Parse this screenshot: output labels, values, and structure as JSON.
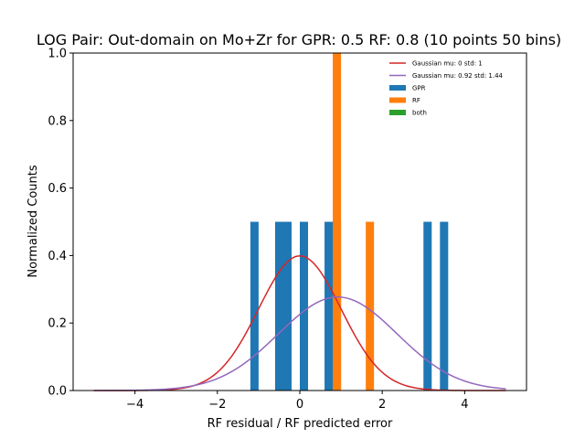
{
  "chart_data": {
    "type": "bar",
    "title": "LOG Pair: Out-domain on Mo+Zr for GPR: 0.5 RF: 0.8 (10 points 50 bins)",
    "xlabel": "RF residual / RF predicted error",
    "ylabel": "Normalized Counts",
    "xlim": [
      -5.5,
      5.5
    ],
    "ylim": [
      0,
      1.0
    ],
    "xticks": [
      -4,
      -2,
      0,
      2,
      4
    ],
    "xtick_labels": [
      "−4",
      "−2",
      "0",
      "2",
      "4"
    ],
    "yticks": [
      0.0,
      0.2,
      0.4,
      0.6,
      0.8,
      1.0
    ],
    "ytick_labels": [
      "0.0",
      "0.2",
      "0.4",
      "0.6",
      "0.8",
      "1.0"
    ],
    "grid": false,
    "legend_position": "top-right",
    "histograms": [
      {
        "name": "GPR",
        "color": "#1f77b4",
        "bins": [
          {
            "x0": -1.2,
            "x1": -1.0,
            "height": 0.5
          },
          {
            "x0": -0.6,
            "x1": -0.2,
            "height": 0.5
          },
          {
            "x0": 0.0,
            "x1": 0.2,
            "height": 0.5
          },
          {
            "x0": 0.6,
            "x1": 1.0,
            "height": 0.5
          },
          {
            "x0": 3.0,
            "x1": 3.2,
            "height": 0.5
          },
          {
            "x0": 3.4,
            "x1": 3.6,
            "height": 0.5
          }
        ]
      },
      {
        "name": "RF",
        "color": "#ff7f0e",
        "bins": [
          {
            "x0": 0.8,
            "x1": 1.0,
            "height": 1.0
          },
          {
            "x0": 1.6,
            "x1": 1.8,
            "height": 0.5
          }
        ]
      },
      {
        "name": "both",
        "color": "#2ca02c",
        "bins": []
      }
    ],
    "curves": [
      {
        "name": "Gaussian mu: 0 std: 1",
        "color": "#d62728",
        "mu": 0,
        "std": 1,
        "x_range": [
          -5,
          5
        ]
      },
      {
        "name": "Gaussian mu: 0.92 std: 1.44",
        "color": "#9467bd",
        "mu": 0.92,
        "std": 1.44,
        "x_range": [
          -5,
          5
        ]
      }
    ]
  }
}
